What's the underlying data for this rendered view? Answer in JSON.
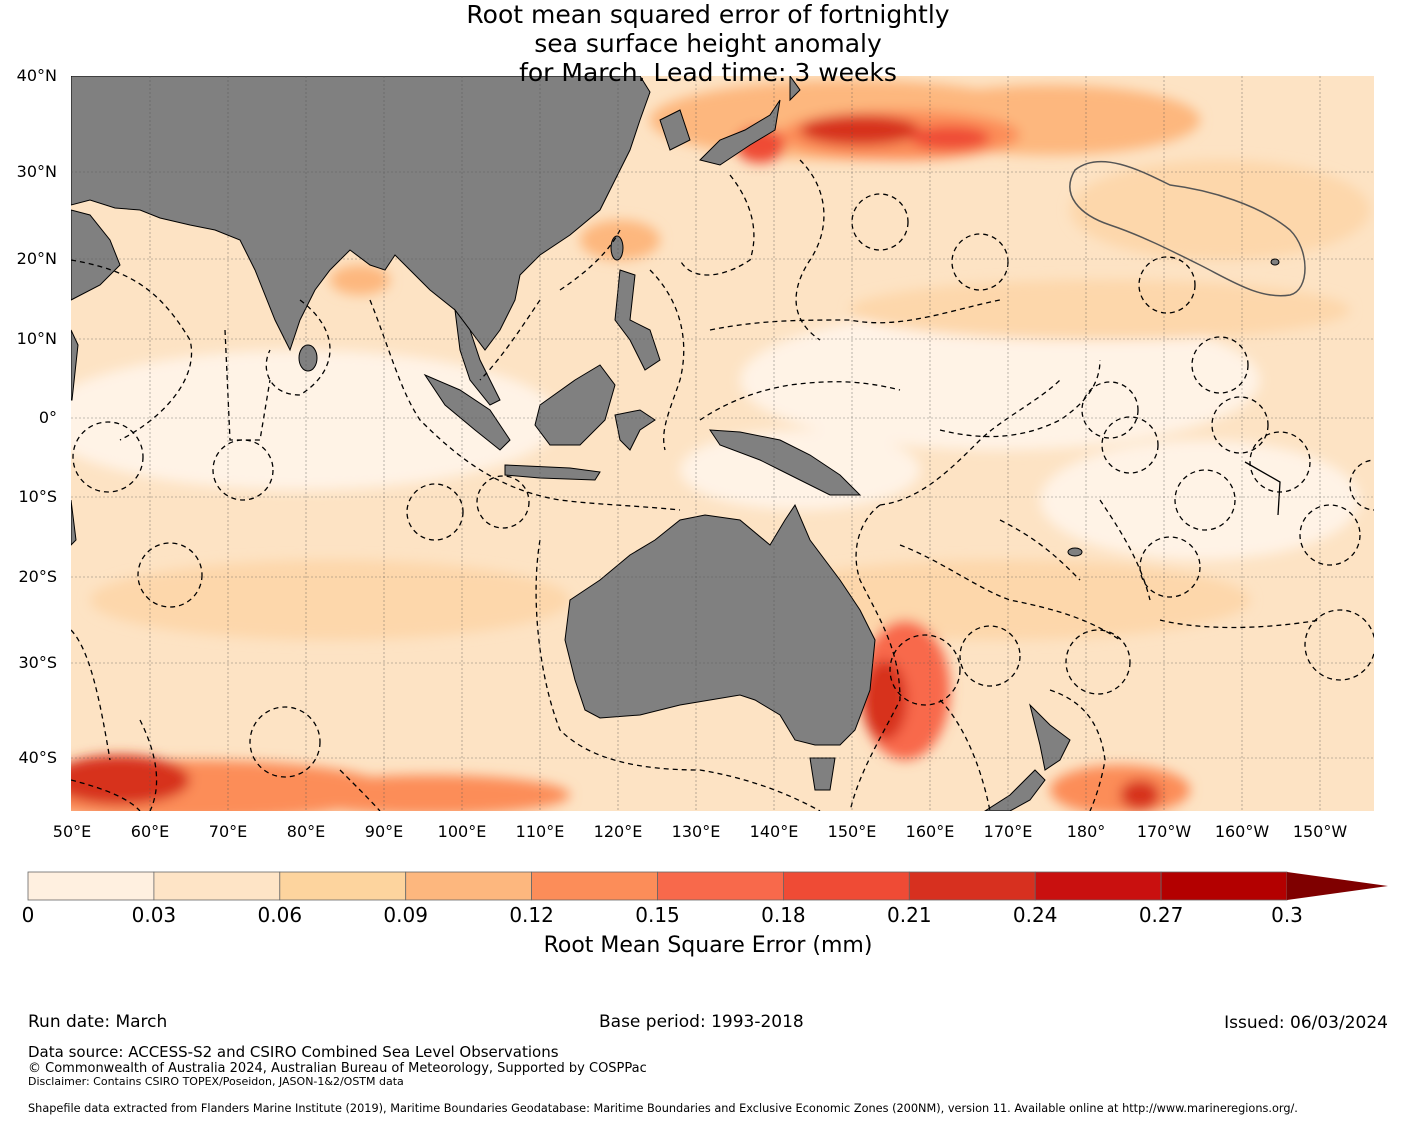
{
  "title": {
    "line1": "Root mean squared error of fortnightly",
    "line2": "sea surface height anomaly",
    "line3": "for March. Lead time: 3 weeks"
  },
  "map": {
    "lat_labels": [
      "40°N",
      "30°N",
      "20°N",
      "10°N",
      "0°",
      "10°S",
      "20°S",
      "30°S",
      "40°S"
    ],
    "lon_labels": [
      "50°E",
      "60°E",
      "70°E",
      "80°E",
      "90°E",
      "100°E",
      "110°E",
      "120°E",
      "130°E",
      "140°E",
      "150°E",
      "160°E",
      "170°E",
      "180°",
      "170°W",
      "160°W",
      "150°W"
    ],
    "ocean_base_color": "#fde3c4",
    "land_color": "#808080"
  },
  "colorbar": {
    "ticks": [
      "0",
      "0.03",
      "0.06",
      "0.09",
      "0.12",
      "0.15",
      "0.18",
      "0.21",
      "0.24",
      "0.27",
      "0.3"
    ],
    "colors": [
      "#fff0e0",
      "#fee4c6",
      "#fdd49e",
      "#fdb77e",
      "#fc8d59",
      "#f8694b",
      "#ef4b35",
      "#d7301f",
      "#c9100f",
      "#b30000",
      "#7f0000"
    ],
    "label": "Root Mean Square Error (mm)",
    "extend": "max"
  },
  "footer": {
    "run_date": "Run date: March",
    "base_period": "Base period: 1993-2018",
    "issued": "Issued: 06/03/2024",
    "data_source": "Data source: ACCESS-S2 and CSIRO Combined Sea Level Observations",
    "copyright": "© Commonwealth of Australia 2024, Australian Bureau of Meteorology, Supported by COSPPac",
    "disclaimer": "Disclaimer: Contains CSIRO TOPEX/Poseidon, JASON-1&2/OSTM data",
    "shapefile": "Shapefile data extracted from Flanders Marine Institute (2019), Maritime Boundaries Geodatabase: Maritime Boundaries and Exclusive Economic Zones (200NM), version 11. Available online at http://www.marineregions.org/."
  }
}
